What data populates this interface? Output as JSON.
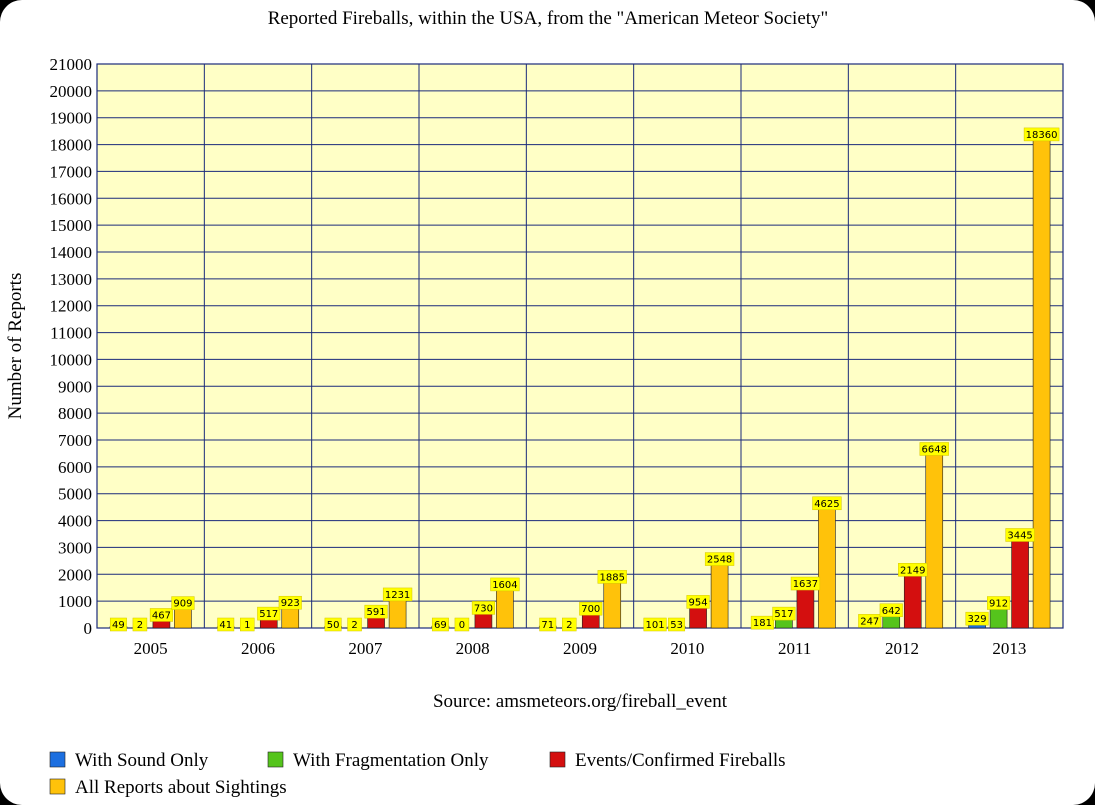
{
  "chart_data": {
    "type": "bar",
    "title": "Reported Fireballs, within the USA, from the \"American Meteor Society\"",
    "ylabel": "Number of Reports",
    "xlabel": "",
    "source": "Source: amsmeteors.org/fireball_event",
    "ylim": [
      0,
      21000
    ],
    "ytick_step": 1000,
    "grid": true,
    "legend_position": "bottom",
    "plot_background": "#ffffc6",
    "categories": [
      "2005",
      "2006",
      "2007",
      "2008",
      "2009",
      "2010",
      "2011",
      "2012",
      "2013"
    ],
    "series": [
      {
        "name": "With Sound Only",
        "color": "#1c6fe0",
        "values": [
          49,
          41,
          50,
          69,
          71,
          101,
          181,
          247,
          329
        ]
      },
      {
        "name": "With Fragmentation Only",
        "color": "#55c41c",
        "values": [
          2,
          1,
          2,
          0,
          2,
          53,
          517,
          642,
          912
        ]
      },
      {
        "name": "Events/Confirmed Fireballs",
        "color": "#d40f0f",
        "values": [
          467,
          517,
          591,
          730,
          700,
          954,
          1637,
          2149,
          3445
        ]
      },
      {
        "name": "All Reports about Sightings",
        "color": "#ffc20a",
        "values": [
          909,
          923,
          1231,
          1604,
          1885,
          2548,
          4625,
          6648,
          18360
        ]
      }
    ]
  }
}
